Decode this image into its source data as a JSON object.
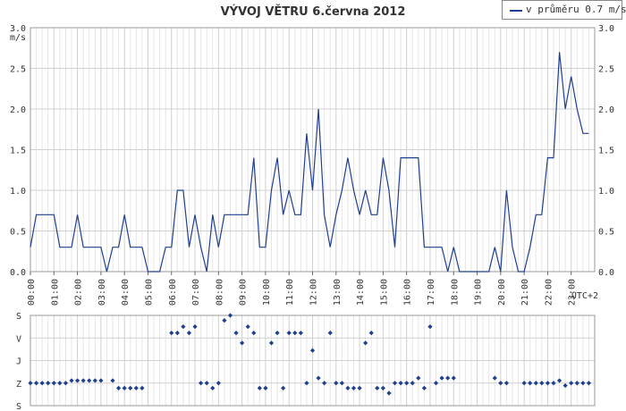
{
  "chart_data": [
    {
      "type": "line",
      "title": "VÝVOJ VĚTRU  6.června 2012",
      "ylabel": "m/s",
      "ylim": [
        0,
        3.0
      ],
      "yticks": [
        "0.0",
        "0.5",
        "1.0",
        "1.5",
        "2.0",
        "2.5",
        "3.0"
      ],
      "xticks": [
        "00:00",
        "01:00",
        "02:00",
        "03:00",
        "04:00",
        "05:00",
        "06:00",
        "07:00",
        "08:00",
        "09:00",
        "10:00",
        "11:00",
        "12:00",
        "13:00",
        "14:00",
        "15:00",
        "16:00",
        "17:00",
        "18:00",
        "19:00",
        "20:00",
        "21:00",
        "22:00",
        "23:00"
      ],
      "xunit": "UTC+2",
      "grid": true,
      "legend_position": "top-right",
      "series": [
        {
          "name": "v průměru 0.7 m/s",
          "color": "#1f3f8f",
          "x": [
            0.0,
            0.25,
            0.5,
            0.75,
            1.0,
            1.25,
            1.5,
            1.75,
            2.0,
            2.25,
            2.5,
            2.75,
            3.0,
            3.25,
            3.5,
            3.75,
            4.0,
            4.25,
            4.5,
            4.75,
            5.0,
            5.25,
            5.5,
            5.75,
            6.0,
            6.25,
            6.5,
            6.75,
            7.0,
            7.25,
            7.5,
            7.75,
            8.0,
            8.25,
            8.5,
            8.75,
            9.0,
            9.25,
            9.5,
            9.75,
            10.0,
            10.25,
            10.5,
            10.75,
            11.0,
            11.25,
            11.5,
            11.75,
            12.0,
            12.25,
            12.5,
            12.75,
            13.0,
            13.25,
            13.5,
            13.75,
            14.0,
            14.25,
            14.5,
            14.75,
            15.0,
            15.25,
            15.5,
            15.75,
            16.0,
            16.25,
            16.5,
            16.75,
            17.0,
            17.25,
            17.5,
            17.75,
            18.0,
            18.25,
            18.5,
            18.75,
            19.0,
            19.25,
            19.5,
            19.75,
            20.0,
            20.25,
            20.5,
            20.75,
            21.0,
            21.25,
            21.5,
            21.75,
            22.0,
            22.25,
            22.5,
            22.75,
            23.0,
            23.25,
            23.5,
            23.75
          ],
          "values": [
            0.3,
            0.7,
            0.7,
            0.7,
            0.7,
            0.3,
            0.3,
            0.3,
            0.7,
            0.3,
            0.3,
            0.3,
            0.3,
            0.0,
            0.3,
            0.3,
            0.7,
            0.3,
            0.3,
            0.3,
            0.0,
            0.0,
            0.0,
            0.3,
            0.3,
            1.0,
            1.0,
            0.3,
            0.7,
            0.3,
            0.0,
            0.7,
            0.3,
            0.7,
            0.7,
            0.7,
            0.7,
            0.7,
            1.4,
            0.3,
            0.3,
            1.0,
            1.4,
            0.7,
            1.0,
            0.7,
            0.7,
            1.7,
            1.0,
            2.0,
            0.7,
            0.3,
            0.7,
            1.0,
            1.4,
            1.0,
            0.7,
            1.0,
            0.7,
            0.7,
            1.4,
            1.0,
            0.3,
            1.4,
            1.4,
            1.4,
            1.4,
            0.3,
            0.3,
            0.3,
            0.3,
            0.0,
            0.3,
            0.0,
            0.0,
            0.0,
            0.0,
            0.0,
            0.0,
            0.3,
            0.0,
            1.0,
            0.3,
            0.0,
            0.0,
            0.3,
            0.7,
            0.7,
            1.4,
            1.4,
            2.7,
            2.0,
            2.4,
            2.0,
            1.7,
            1.7
          ]
        }
      ]
    },
    {
      "type": "scatter",
      "ylabel_ticks": [
        "S",
        "V",
        "J",
        "Z",
        "S"
      ],
      "ylim": [
        0,
        360
      ],
      "series": [
        {
          "name": "",
          "color": "#1f3f8f",
          "x": [
            0.0,
            0.25,
            0.5,
            0.75,
            1.0,
            1.25,
            1.5,
            1.75,
            2.0,
            2.25,
            2.5,
            2.75,
            3.0,
            3.5,
            3.75,
            4.0,
            4.25,
            4.5,
            4.75,
            6.0,
            6.25,
            6.5,
            6.75,
            7.0,
            7.25,
            7.5,
            7.75,
            8.0,
            8.25,
            8.5,
            8.75,
            9.0,
            9.25,
            9.5,
            9.75,
            10.0,
            10.25,
            10.5,
            10.75,
            11.0,
            11.25,
            11.5,
            11.75,
            12.0,
            12.25,
            12.5,
            12.75,
            13.0,
            13.25,
            13.5,
            13.75,
            14.0,
            14.25,
            14.5,
            14.75,
            15.0,
            15.25,
            15.5,
            15.75,
            16.0,
            16.25,
            16.5,
            16.75,
            17.0,
            17.25,
            17.5,
            17.75,
            18.0,
            19.75,
            20.0,
            20.25,
            21.0,
            21.25,
            21.5,
            21.75,
            22.0,
            22.25,
            22.5,
            22.75,
            23.0,
            23.25,
            23.5,
            23.75
          ],
          "values": [
            270,
            270,
            270,
            270,
            270,
            270,
            270,
            260,
            260,
            260,
            260,
            260,
            260,
            260,
            290,
            290,
            290,
            290,
            290,
            70,
            70,
            45,
            70,
            45,
            270,
            270,
            290,
            270,
            20,
            0,
            70,
            110,
            45,
            70,
            290,
            290,
            110,
            70,
            290,
            70,
            70,
            70,
            270,
            140,
            250,
            270,
            70,
            270,
            270,
            290,
            290,
            290,
            110,
            70,
            290,
            290,
            310,
            270,
            270,
            270,
            270,
            250,
            290,
            45,
            270,
            250,
            250,
            250,
            250,
            270,
            270,
            270,
            270,
            270,
            270,
            270,
            270,
            260,
            280,
            270,
            270,
            270,
            270
          ]
        }
      ]
    }
  ]
}
